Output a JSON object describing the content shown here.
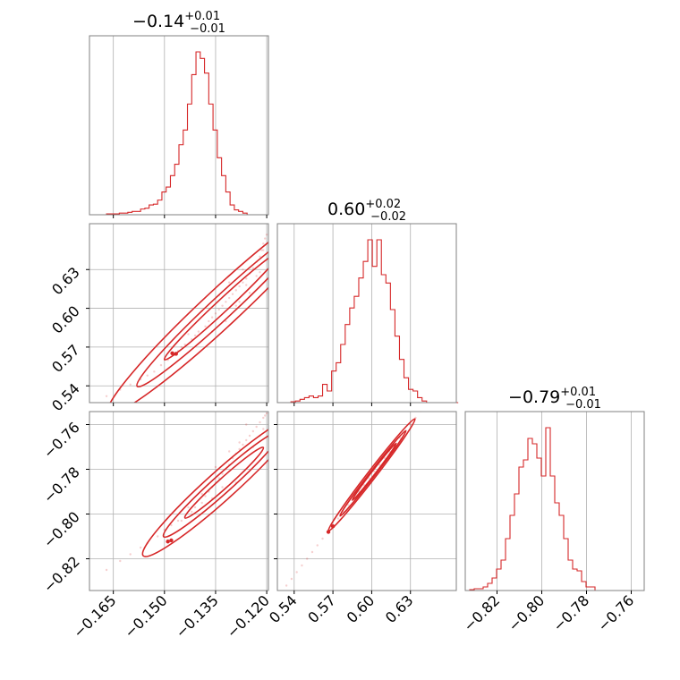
{
  "colors": {
    "series": "#d62728",
    "grid": "#b0b0b0",
    "frame": "#808080",
    "background": "#ffffff"
  },
  "panels": {
    "p0": {
      "title": {
        "main": "−0.14",
        "sup": "+0.01",
        "sub": "−0.01"
      }
    },
    "p1": {
      "title": {
        "main": "0.60",
        "sup": "+0.02",
        "sub": "−0.02"
      }
    },
    "p2": {
      "title": {
        "main": "−0.79",
        "sup": "+0.01",
        "sub": "−0.01"
      }
    }
  },
  "chart_data": {
    "type": "corner",
    "grid": true,
    "parameters": [
      {
        "range": [
          -0.172,
          -0.1195
        ],
        "ticks": [
          -0.165,
          -0.15,
          -0.135,
          -0.12
        ],
        "tick_labels": [
          "−0.165",
          "−0.150",
          "−0.135",
          "−0.120"
        ],
        "hist": {
          "bin_start": -0.172,
          "bin_width": 0.00125,
          "values": [
            0,
            0,
            0,
            0,
            0.005,
            0.005,
            0.005,
            0.01,
            0.01,
            0.015,
            0.02,
            0.02,
            0.035,
            0.04,
            0.06,
            0.065,
            0.09,
            0.14,
            0.17,
            0.24,
            0.31,
            0.43,
            0.52,
            0.68,
            0.86,
            1.0,
            0.96,
            0.87,
            0.68,
            0.52,
            0.35,
            0.24,
            0.14,
            0.06,
            0.03,
            0.02,
            0.01,
            0.0,
            0.0,
            0.0,
            0.0,
            0.0
          ]
        }
      },
      {
        "range": [
          0.527,
          0.6655
        ],
        "ticks": [
          0.54,
          0.57,
          0.6,
          0.63
        ],
        "tick_labels": [
          "0.54",
          "0.57",
          "0.60",
          "0.63"
        ],
        "hist": {
          "bin_start": 0.527,
          "bin_width": 0.0035,
          "values": [
            0.0,
            0.0,
            0.0,
            0.005,
            0.01,
            0.02,
            0.03,
            0.04,
            0.03,
            0.04,
            0.11,
            0.07,
            0.19,
            0.24,
            0.35,
            0.47,
            0.57,
            0.64,
            0.75,
            0.85,
            0.98,
            0.82,
            0.98,
            0.77,
            0.72,
            0.56,
            0.4,
            0.26,
            0.15,
            0.08,
            0.07,
            0.03,
            0.01,
            0.0,
            0.0,
            0.0,
            0.0,
            0.0,
            0.0,
            0.0
          ]
        }
      },
      {
        "range": [
          -0.8342,
          -0.7542
        ],
        "ticks": [
          -0.82,
          -0.8,
          -0.78,
          -0.76
        ],
        "tick_labels": [
          "−0.82",
          "−0.80",
          "−0.78",
          "−0.76"
        ],
        "hist": {
          "bin_start": -0.8342,
          "bin_width": 0.002,
          "values": [
            0.0,
            0.005,
            0.01,
            0.01,
            0.02,
            0.04,
            0.07,
            0.12,
            0.17,
            0.29,
            0.42,
            0.54,
            0.69,
            0.73,
            0.85,
            0.82,
            0.74,
            0.64,
            0.91,
            0.64,
            0.49,
            0.42,
            0.29,
            0.17,
            0.12,
            0.11,
            0.05,
            0.02,
            0.02,
            0.0,
            0.0,
            0.0,
            0.0,
            0.0,
            0.0,
            0.0,
            0.0,
            0.0,
            0.0,
            0.0
          ]
        }
      }
    ],
    "pairs": [
      {
        "x": 0,
        "y": 1,
        "samples": [
          [
            -0.167,
            0.532
          ],
          [
            -0.163,
            0.537
          ],
          [
            -0.16,
            0.541
          ],
          [
            -0.157,
            0.545
          ],
          [
            -0.155,
            0.548
          ],
          [
            -0.153,
            0.551
          ],
          [
            -0.151,
            0.556
          ],
          [
            -0.149,
            0.56
          ],
          [
            -0.147,
            0.564
          ],
          [
            -0.146,
            0.567
          ],
          [
            -0.144,
            0.572
          ],
          [
            -0.142,
            0.576
          ],
          [
            -0.141,
            0.579
          ],
          [
            -0.14,
            0.582
          ],
          [
            -0.138,
            0.586
          ],
          [
            -0.137,
            0.59
          ],
          [
            -0.136,
            0.593
          ],
          [
            -0.135,
            0.596
          ],
          [
            -0.134,
            0.599
          ],
          [
            -0.133,
            0.602
          ],
          [
            -0.132,
            0.605
          ],
          [
            -0.131,
            0.608
          ],
          [
            -0.13,
            0.611
          ],
          [
            -0.129,
            0.614
          ],
          [
            -0.128,
            0.617
          ],
          [
            -0.127,
            0.62
          ],
          [
            -0.126,
            0.623
          ],
          [
            -0.125,
            0.627
          ],
          [
            -0.124,
            0.631
          ],
          [
            -0.123,
            0.636
          ],
          [
            -0.122,
            0.64
          ],
          [
            -0.1215,
            0.645
          ],
          [
            -0.121,
            0.65
          ],
          [
            -0.1205,
            0.654
          ],
          [
            -0.12,
            0.657
          ],
          [
            -0.139,
            0.598
          ],
          [
            -0.128,
            0.605
          ],
          [
            -0.131,
            0.62
          ],
          [
            -0.136,
            0.582
          ],
          [
            -0.125,
            0.612
          ],
          [
            -0.123,
            0.625
          ],
          [
            -0.132,
            0.59
          ],
          [
            -0.134,
            0.61
          ],
          [
            -0.127,
            0.63
          ],
          [
            -0.143,
            0.58
          ],
          [
            -0.145,
            0.57
          ],
          [
            -0.129,
            0.602
          ],
          [
            -0.126,
            0.618
          ],
          [
            -0.122,
            0.628
          ],
          [
            -0.121,
            0.645
          ]
        ],
        "contour_levels": [
          {
            "center": [
              -0.1335,
              0.6
            ],
            "length": 0.066,
            "width": 0.0018
          },
          {
            "center": [
              -0.133,
              0.601
            ],
            "length": 0.05,
            "width": 0.0011
          },
          {
            "center": [
              -0.133,
              0.602
            ],
            "length": 0.034,
            "width": 0.0006
          }
        ],
        "blobs": [
          [
            -0.1466,
            0.5648
          ],
          [
            -0.1477,
            0.5652
          ]
        ]
      },
      {
        "x": 0,
        "y": 2,
        "samples": [
          [
            -0.167,
            -0.825
          ],
          [
            -0.163,
            -0.821
          ],
          [
            -0.16,
            -0.818
          ],
          [
            -0.157,
            -0.815
          ],
          [
            -0.155,
            -0.813
          ],
          [
            -0.152,
            -0.81
          ],
          [
            -0.15,
            -0.807
          ],
          [
            -0.148,
            -0.805
          ],
          [
            -0.146,
            -0.803
          ],
          [
            -0.144,
            -0.801
          ],
          [
            -0.142,
            -0.799
          ],
          [
            -0.141,
            -0.797
          ],
          [
            -0.139,
            -0.795
          ],
          [
            -0.138,
            -0.792
          ],
          [
            -0.137,
            -0.79
          ],
          [
            -0.136,
            -0.788
          ],
          [
            -0.135,
            -0.786
          ],
          [
            -0.134,
            -0.784
          ],
          [
            -0.133,
            -0.782
          ],
          [
            -0.132,
            -0.78
          ],
          [
            -0.131,
            -0.778
          ],
          [
            -0.13,
            -0.775
          ],
          [
            -0.129,
            -0.773
          ],
          [
            -0.128,
            -0.771
          ],
          [
            -0.127,
            -0.769
          ],
          [
            -0.126,
            -0.767
          ],
          [
            -0.125,
            -0.765
          ],
          [
            -0.124,
            -0.763
          ],
          [
            -0.123,
            -0.761
          ],
          [
            -0.122,
            -0.759
          ],
          [
            -0.121,
            -0.757
          ],
          [
            -0.1205,
            -0.756
          ],
          [
            -0.12,
            -0.755
          ],
          [
            -0.139,
            -0.791
          ],
          [
            -0.129,
            -0.786
          ],
          [
            -0.131,
            -0.772
          ],
          [
            -0.136,
            -0.793
          ],
          [
            -0.124,
            -0.77
          ],
          [
            -0.126,
            -0.76
          ],
          [
            -0.133,
            -0.788
          ],
          [
            -0.135,
            -0.779
          ],
          [
            -0.128,
            -0.768
          ],
          [
            -0.143,
            -0.797
          ],
          [
            -0.145,
            -0.803
          ],
          [
            -0.122,
            -0.765
          ],
          [
            -0.121,
            -0.762
          ]
        ],
        "contour_levels": [
          {
            "center": [
              -0.1335,
              -0.7875
            ],
            "length": 0.0455,
            "width": 0.0014
          },
          {
            "center": [
              -0.133,
              -0.7865
            ],
            "length": 0.0345,
            "width": 0.0009
          },
          {
            "center": [
              -0.1325,
              -0.786
            ],
            "length": 0.023,
            "width": 0.0005
          }
        ],
        "blobs": [
          [
            -0.148,
            -0.8118
          ],
          [
            -0.149,
            -0.8123
          ]
        ]
      },
      {
        "x": 1,
        "y": 2,
        "samples": [
          [
            0.53,
            -0.835
          ],
          [
            0.534,
            -0.832
          ],
          [
            0.538,
            -0.829
          ],
          [
            0.542,
            -0.826
          ],
          [
            0.546,
            -0.823
          ],
          [
            0.55,
            -0.82
          ],
          [
            0.554,
            -0.817
          ],
          [
            0.558,
            -0.814
          ],
          [
            0.562,
            -0.811
          ],
          [
            0.566,
            -0.808
          ],
          [
            0.57,
            -0.805
          ],
          [
            0.574,
            -0.802
          ],
          [
            0.578,
            -0.799
          ],
          [
            0.582,
            -0.796
          ],
          [
            0.586,
            -0.793
          ],
          [
            0.59,
            -0.79
          ],
          [
            0.594,
            -0.787
          ],
          [
            0.598,
            -0.784
          ],
          [
            0.602,
            -0.781
          ],
          [
            0.606,
            -0.778
          ],
          [
            0.61,
            -0.775
          ],
          [
            0.614,
            -0.772
          ],
          [
            0.618,
            -0.769
          ],
          [
            0.622,
            -0.766
          ],
          [
            0.626,
            -0.763
          ],
          [
            0.63,
            -0.76
          ],
          [
            0.634,
            -0.757
          ],
          [
            0.638,
            -0.754
          ],
          [
            0.642,
            -0.751
          ],
          [
            0.646,
            -0.748
          ],
          [
            0.65,
            -0.745
          ],
          [
            0.654,
            -0.742
          ],
          [
            0.658,
            -0.739
          ],
          [
            0.661,
            -0.737
          ]
        ],
        "contour_levels": [
          {
            "center": [
              0.6,
              -0.7825
            ],
            "length": 0.067,
            "width": 0.0011
          },
          {
            "center": [
              0.601,
              -0.7818
            ],
            "length": 0.051,
            "width": 0.0007
          },
          {
            "center": [
              0.602,
              -0.7811
            ],
            "length": 0.034,
            "width": 0.0004
          }
        ],
        "blobs": [
          [
            0.5665,
            -0.808
          ],
          [
            0.57,
            -0.8055
          ]
        ]
      }
    ]
  }
}
